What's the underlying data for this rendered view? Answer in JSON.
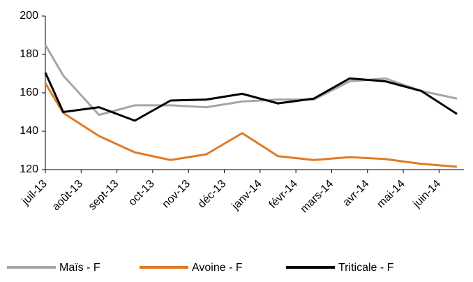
{
  "chart_data": {
    "type": "line",
    "x": [
      0,
      0.5,
      1.5,
      2.5,
      3.5,
      4.5,
      5.5,
      6.5,
      7.5,
      8.5,
      9.5,
      10.5,
      11.5
    ],
    "xlim": [
      0,
      11.5
    ],
    "xticks": [
      {
        "value": 0,
        "label": "juil-13"
      },
      {
        "value": 1,
        "label": "août-13"
      },
      {
        "value": 2,
        "label": "sept-13"
      },
      {
        "value": 3,
        "label": "oct-13"
      },
      {
        "value": 4,
        "label": "nov-13"
      },
      {
        "value": 5,
        "label": "déc-13"
      },
      {
        "value": 6,
        "label": "janv-14"
      },
      {
        "value": 7,
        "label": "févr-14"
      },
      {
        "value": 8,
        "label": "mars-14"
      },
      {
        "value": 9,
        "label": "avr-14"
      },
      {
        "value": 10,
        "label": "mai-14"
      },
      {
        "value": 11,
        "label": "juin-14"
      }
    ],
    "ylim": [
      120,
      200
    ],
    "yticks": [
      120,
      140,
      160,
      180,
      200
    ],
    "series": [
      {
        "name": "Maïs - F",
        "color": "#a6a6a6",
        "values": [
          185,
          169,
          148.5,
          153.5,
          153.5,
          152.5,
          155.5,
          156.5,
          156.5,
          166,
          167.5,
          161,
          157
        ]
      },
      {
        "name": "Avoine - F",
        "color": "#e07b24",
        "values": [
          165,
          149.5,
          137.5,
          129,
          125,
          128,
          139,
          127,
          125,
          126.5,
          125.5,
          123,
          121.5
        ]
      },
      {
        "name": "Triticale - F",
        "color": "#000000",
        "values": [
          170.5,
          150,
          152.5,
          145.5,
          156,
          156.5,
          159.5,
          154.5,
          157,
          167.5,
          166,
          161,
          149
        ]
      }
    ]
  }
}
